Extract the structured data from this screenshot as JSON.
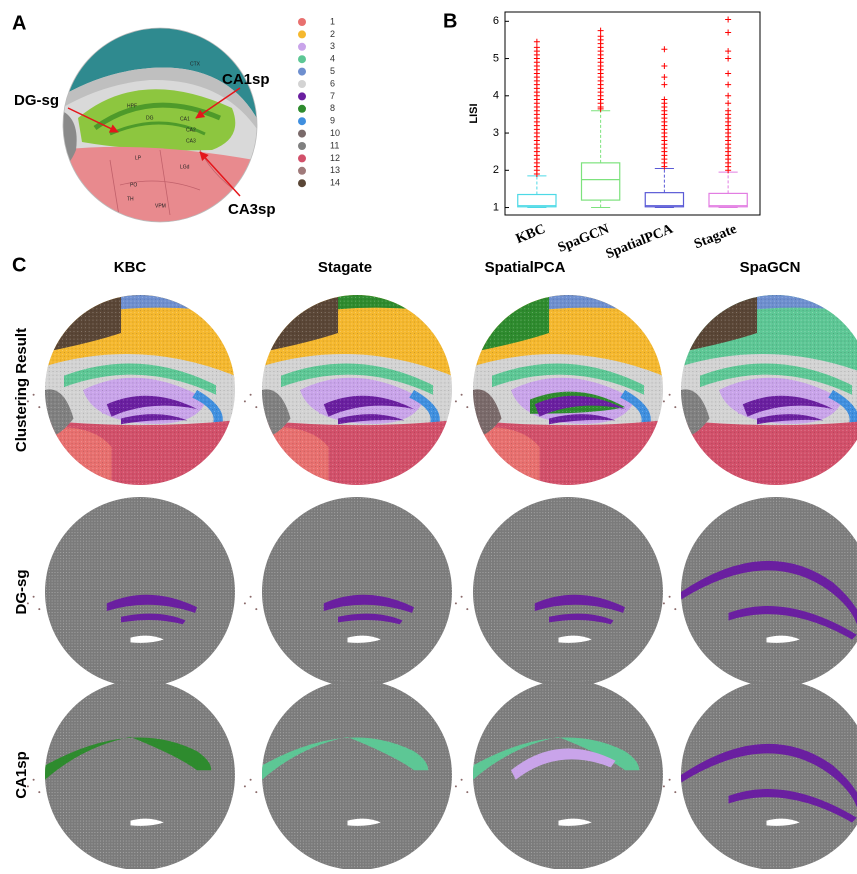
{
  "panel_labels": [
    "A",
    "B",
    "C"
  ],
  "atlas": {
    "regions": [
      "CTX",
      "HPF",
      "DG",
      "CA1",
      "CA2",
      "CA3",
      "TH",
      "LP",
      "PO",
      "LGd",
      "VPM"
    ],
    "annotations": [
      "DG-sg",
      "CA1sp",
      "CA3sp"
    ]
  },
  "legend": [
    {
      "label": "1",
      "color": "#e8706f"
    },
    {
      "label": "2",
      "color": "#f5b82e"
    },
    {
      "label": "3",
      "color": "#c9a4ea"
    },
    {
      "label": "4",
      "color": "#5dc795"
    },
    {
      "label": "5",
      "color": "#6e8fcf"
    },
    {
      "label": "6",
      "color": "#d3d3d3"
    },
    {
      "label": "7",
      "color": "#6a1fa0"
    },
    {
      "label": "8",
      "color": "#2e8b2e"
    },
    {
      "label": "9",
      "color": "#3f8fdf"
    },
    {
      "label": "10",
      "color": "#7a6a6a"
    },
    {
      "label": "11",
      "color": "#808080"
    },
    {
      "label": "12",
      "color": "#d2506a"
    },
    {
      "label": "13",
      "color": "#a07a7a"
    },
    {
      "label": "14",
      "color": "#5a4636"
    }
  ],
  "chart_data": {
    "type": "box",
    "ylabel": "LISI",
    "categories": [
      "KBC",
      "SpaGCN",
      "SpatialPCA",
      "Stagate"
    ],
    "colors": [
      "#4dd9e6",
      "#7de27d",
      "#5a5ad6",
      "#e27de2"
    ],
    "outlier_color": "#ff0000",
    "ylim": [
      0.8,
      6.25
    ],
    "yticks": [
      1,
      2,
      3,
      4,
      5,
      6
    ],
    "boxes": [
      {
        "whisker_low": 1,
        "q1": 1.02,
        "median": 1.05,
        "q3": 1.35,
        "whisker_high": 1.85,
        "outliers": [
          1.9,
          2.0,
          2.1,
          2.2,
          2.3,
          2.4,
          2.5,
          2.6,
          2.7,
          2.8,
          2.9,
          3.0,
          3.1,
          3.2,
          3.3,
          3.4,
          3.5,
          3.6,
          3.7,
          3.8,
          3.9,
          4.0,
          4.1,
          4.2,
          4.3,
          4.4,
          4.5,
          4.6,
          4.7,
          4.8,
          4.9,
          5.0,
          5.1,
          5.2,
          5.3,
          5.45
        ]
      },
      {
        "whisker_low": 1,
        "q1": 1.2,
        "median": 1.75,
        "q3": 2.2,
        "whisker_high": 3.6,
        "outliers": [
          3.65,
          3.7,
          3.8,
          3.9,
          4.0,
          4.1,
          4.2,
          4.3,
          4.4,
          4.5,
          4.6,
          4.7,
          4.8,
          4.9,
          5.0,
          5.1,
          5.2,
          5.3,
          5.4,
          5.5,
          5.6,
          5.75
        ]
      },
      {
        "whisker_low": 1,
        "q1": 1.02,
        "median": 1.05,
        "q3": 1.4,
        "whisker_high": 2.05,
        "outliers": [
          2.1,
          2.2,
          2.3,
          2.4,
          2.5,
          2.6,
          2.7,
          2.8,
          2.9,
          3.0,
          3.1,
          3.2,
          3.3,
          3.4,
          3.5,
          3.6,
          3.7,
          3.8,
          3.9,
          4.3,
          4.5,
          4.8,
          5.25
        ]
      },
      {
        "whisker_low": 1,
        "q1": 1.02,
        "median": 1.05,
        "q3": 1.38,
        "whisker_high": 1.95,
        "outliers": [
          2.0,
          2.1,
          2.2,
          2.3,
          2.4,
          2.5,
          2.6,
          2.7,
          2.8,
          2.9,
          3.0,
          3.1,
          3.2,
          3.3,
          3.4,
          3.5,
          3.6,
          3.8,
          4.0,
          4.3,
          4.6,
          5.0,
          5.2,
          5.7,
          6.05
        ]
      }
    ]
  },
  "grid": {
    "columns": [
      "KBC",
      "Stagate",
      "SpatialPCA",
      "SpaGCN"
    ],
    "rows": [
      "Clustering Result",
      "DG-sg",
      "CA1sp"
    ]
  }
}
